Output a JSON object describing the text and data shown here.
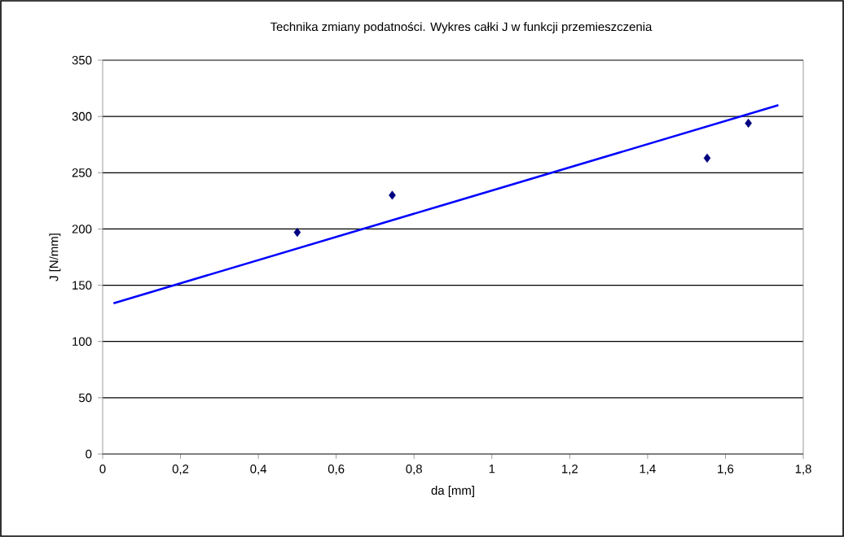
{
  "chart_data": {
    "type": "scatter",
    "title": "Technika zmiany podatności. Wykres całki J w funkcji przemieszczenia",
    "xlabel": "da [mm]",
    "ylabel": "J [N/mm]",
    "series": [
      {
        "color": "#000080",
        "marker": "diamond",
        "x": [
          0.5,
          0.744,
          1.553,
          1.659
        ],
        "values": [
          197,
          230,
          263,
          294
        ]
      },
      {
        "type": "line",
        "color": "#0000ff",
        "marker": "none",
        "x": [
          0.028,
          1.736
        ],
        "values": [
          134,
          310
        ]
      }
    ],
    "xlim": [
      0,
      1.8
    ],
    "xticks": [
      0,
      {
        "value": 0.2,
        "label": "0,2"
      },
      {
        "value": 0.4,
        "label": "0,4"
      },
      {
        "value": 0.6,
        "label": "0,6"
      },
      {
        "value": 0.8,
        "label": "0,8"
      },
      1,
      {
        "value": 1.2,
        "label": "1,2"
      },
      {
        "value": 1.4,
        "label": "1,4"
      },
      {
        "value": 1.6,
        "label": "1,6"
      },
      {
        "value": 1.8,
        "label": "1,8"
      }
    ],
    "ylim": [
      0,
      350
    ],
    "yticks": [
      0,
      50,
      100,
      150,
      200,
      250,
      300,
      350
    ],
    "grid": "y"
  }
}
